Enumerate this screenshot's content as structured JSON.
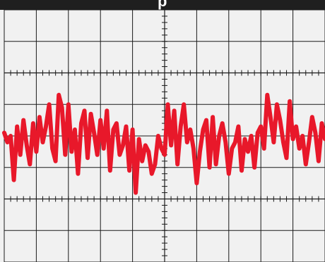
{
  "chart_data": {
    "type": "line",
    "title": "p",
    "xlabel": "",
    "ylabel": "",
    "grid": true,
    "divisions": {
      "x": 10,
      "y": 8
    },
    "xlim": [
      0,
      10
    ],
    "ylim": [
      -4,
      4
    ],
    "series": [
      {
        "color": "#e8182a",
        "x": [
          0.0,
          0.1,
          0.2,
          0.3,
          0.4,
          0.5,
          0.6,
          0.7,
          0.8,
          0.9,
          1.0,
          1.1,
          1.2,
          1.3,
          1.4,
          1.5,
          1.6,
          1.7,
          1.8,
          1.9,
          2.0,
          2.1,
          2.2,
          2.3,
          2.4,
          2.5,
          2.6,
          2.7,
          2.8,
          2.9,
          3.0,
          3.1,
          3.2,
          3.3,
          3.4,
          3.5,
          3.6,
          3.7,
          3.8,
          3.9,
          4.0,
          4.1,
          4.2,
          4.3,
          4.4,
          4.5,
          4.6,
          4.7,
          4.8,
          4.9,
          5.0,
          5.1,
          5.2,
          5.3,
          5.4,
          5.5,
          5.6,
          5.7,
          5.8,
          5.9,
          6.0,
          6.1,
          6.2,
          6.3,
          6.4,
          6.5,
          6.6,
          6.7,
          6.8,
          6.9,
          7.0,
          7.1,
          7.2,
          7.3,
          7.4,
          7.5,
          7.6,
          7.7,
          7.8,
          7.9,
          8.0,
          8.1,
          8.2,
          8.3,
          8.4,
          8.5,
          8.6,
          8.7,
          8.8,
          8.9,
          9.0,
          9.1,
          9.2,
          9.3,
          9.4,
          9.5,
          9.6,
          9.7,
          9.8,
          9.9,
          10.0
        ],
        "y": [
          0.1,
          -0.2,
          0.0,
          -1.4,
          0.3,
          -0.6,
          0.5,
          -0.3,
          -0.9,
          0.4,
          -0.5,
          0.6,
          -0.2,
          0.3,
          1.0,
          -0.4,
          -0.8,
          1.3,
          0.9,
          -0.6,
          1.0,
          -0.5,
          0.2,
          -1.2,
          0.4,
          0.8,
          -0.7,
          0.7,
          0.1,
          -0.6,
          0.5,
          -0.4,
          0.8,
          -1.1,
          0.2,
          0.4,
          -0.6,
          -0.3,
          0.3,
          -1.1,
          0.2,
          -1.8,
          -0.1,
          -0.8,
          -0.3,
          -0.5,
          -1.2,
          -0.9,
          0.0,
          -0.4,
          -0.6,
          1.0,
          -0.3,
          0.8,
          -0.9,
          0.3,
          1.0,
          -0.2,
          0.2,
          -0.4,
          -1.5,
          -0.5,
          0.2,
          0.5,
          -1.0,
          0.6,
          -0.9,
          0.0,
          0.4,
          -0.2,
          -1.2,
          -0.4,
          -0.2,
          0.3,
          -1.1,
          -0.1,
          -0.5,
          0.0,
          -1.0,
          0.1,
          0.3,
          -0.4,
          1.3,
          0.6,
          -0.2,
          1.0,
          0.5,
          -0.2,
          -0.7,
          1.1,
          -0.1,
          0.3,
          -0.4,
          0.0,
          -0.9,
          -0.2,
          0.6,
          0.1,
          -0.8,
          0.4,
          -0.1
        ]
      }
    ]
  },
  "colors": {
    "background": "#f1f1f1",
    "grid": "#1a1a1a",
    "title_bar": "#1f1f1f",
    "trace": "#e8182a"
  }
}
